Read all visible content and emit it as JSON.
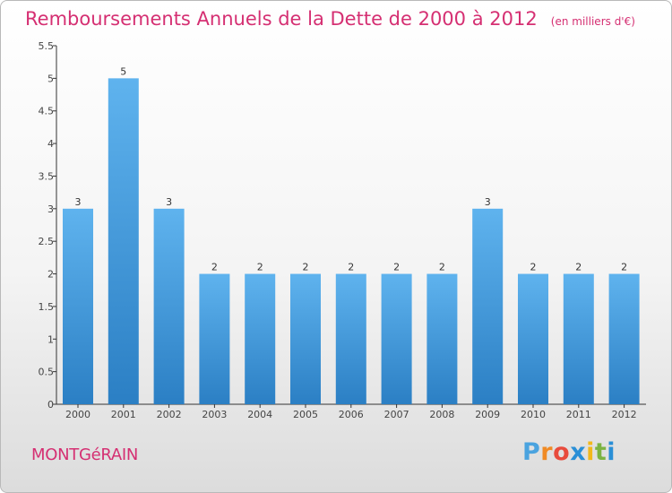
{
  "title": "Remboursements Annuels de la Dette de 2000 à 2012",
  "unit": "(en milliers d'€)",
  "commune": "MONTGéRAIN",
  "brand": {
    "name": "Proxiti",
    "letters": [
      "P",
      "r",
      "o",
      "x",
      "i",
      "t",
      "i"
    ],
    "letter_colors": [
      "#4aa3df",
      "#f08a24",
      "#e84b3c",
      "#2a8fd6",
      "#f2b81b",
      "#7cb342",
      "#2a8fd6"
    ]
  },
  "colors": {
    "title": "#d52f72",
    "bar_top": "#5fb3ee",
    "bar_bottom": "#2b7fc4",
    "axis": "#333333"
  },
  "chart_data": {
    "type": "bar",
    "title": "Remboursements Annuels de la Dette de 2000 à 2012",
    "categories": [
      "2000",
      "2001",
      "2002",
      "2003",
      "2004",
      "2005",
      "2006",
      "2007",
      "2008",
      "2009",
      "2010",
      "2011",
      "2012"
    ],
    "values": [
      3,
      5,
      3,
      2,
      2,
      2,
      2,
      2,
      2,
      3,
      2,
      2,
      2
    ],
    "ylim": [
      0,
      5.5
    ],
    "yticks": [
      0,
      0.5,
      1,
      1.5,
      2,
      2.5,
      3,
      3.5,
      4,
      4.5,
      5,
      5.5
    ],
    "ytick_labels": [
      "0",
      "0.5",
      "1",
      "1.5",
      "2",
      "2.5",
      "3",
      "3.5",
      "4",
      "4.5",
      "5",
      "5.5"
    ],
    "grid": false,
    "data_labels": true
  }
}
